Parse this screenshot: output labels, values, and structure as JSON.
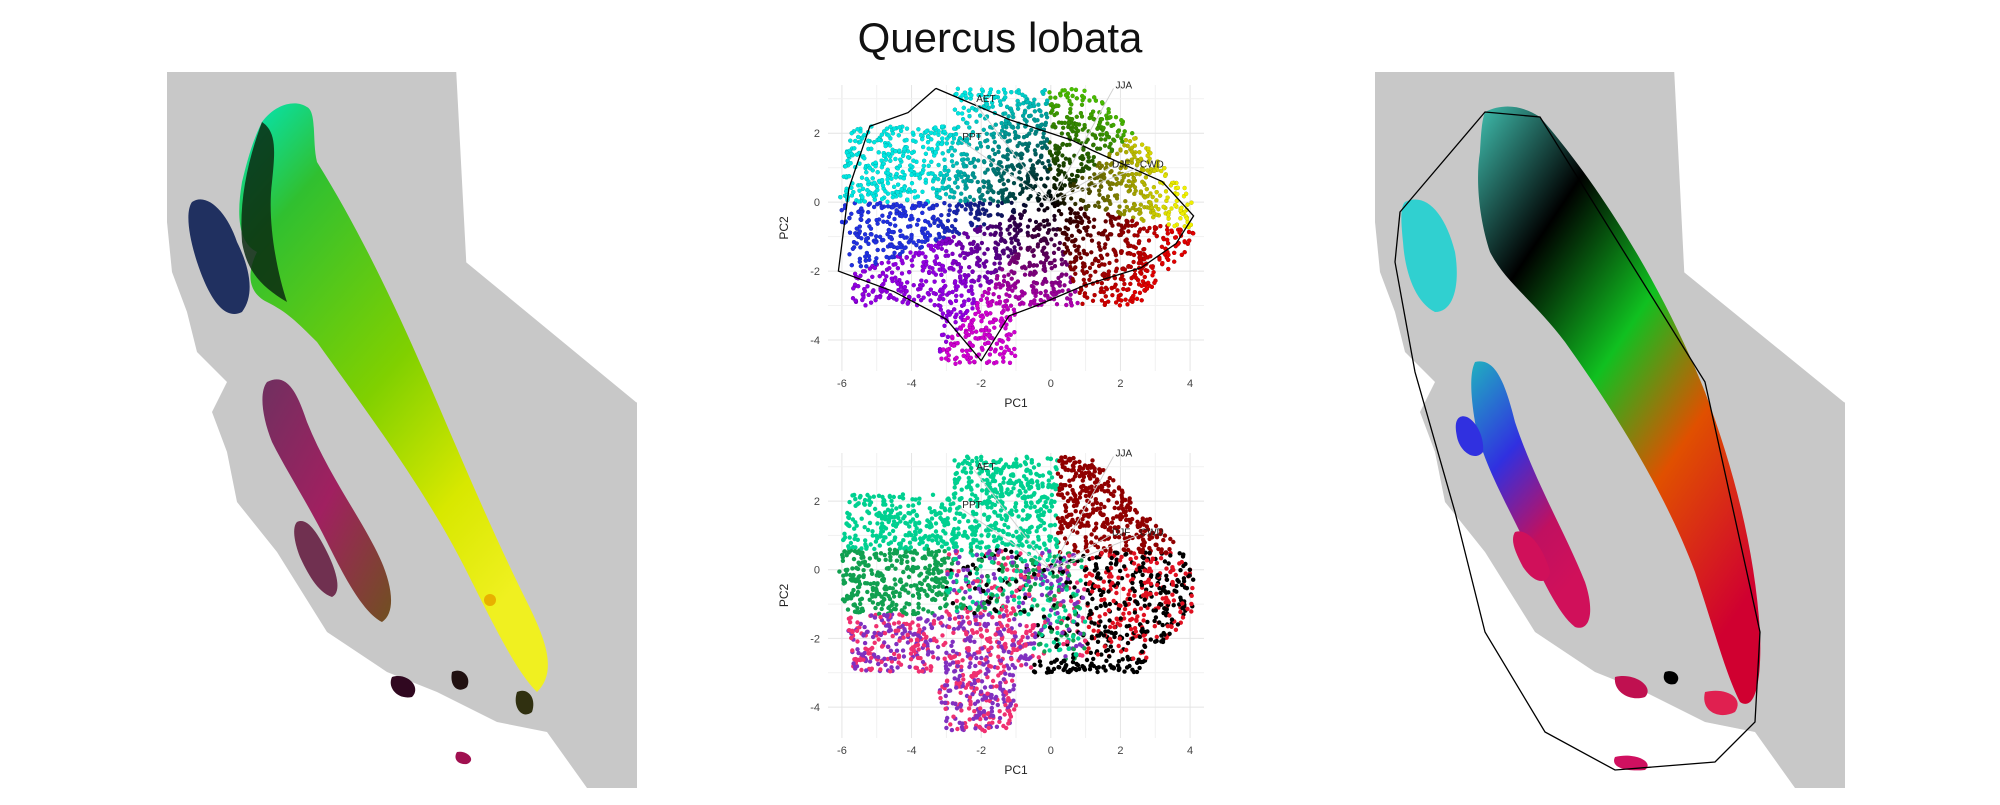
{
  "figure": {
    "title": "Quercus lobata"
  },
  "chart_data": [
    {
      "type": "scatter",
      "panel": "pca-colorwheel",
      "xlabel": "PC1",
      "ylabel": "PC2",
      "xlim": [
        -6.4,
        4.4
      ],
      "ylim": [
        -4.9,
        3.4
      ],
      "x_ticks": [
        "-6",
        "-4",
        "-2",
        "0",
        "2",
        "4"
      ],
      "y_ticks": [
        "2",
        "0",
        "-2",
        "-4"
      ],
      "grid": true,
      "hull_outline": true,
      "colors": {
        "black": "#000000",
        "cyan": "#00e5e0",
        "yellow": "#f0f000",
        "green": "#50d000",
        "red": "#e00000",
        "magenta": "#d000d0",
        "blue": "#2030e0",
        "purple": "#9000e0"
      },
      "loadings": [
        {
          "label": "AET",
          "x": -2.2,
          "y": 2.9
        },
        {
          "label": "JJA",
          "x": 1.8,
          "y": 3.3
        },
        {
          "label": "PPT",
          "x": -2.6,
          "y": 1.8
        },
        {
          "label": "DJF",
          "x": 1.7,
          "y": 1.0
        },
        {
          "label": "CWD",
          "x": 2.5,
          "y": 1.0
        }
      ]
    },
    {
      "type": "scatter",
      "panel": "pca-clusters",
      "xlabel": "PC1",
      "ylabel": "PC2",
      "xlim": [
        -6.4,
        4.4
      ],
      "ylim": [
        -4.9,
        3.4
      ],
      "x_ticks": [
        "-6",
        "-4",
        "-2",
        "0",
        "2",
        "4"
      ],
      "y_ticks": [
        "2",
        "0",
        "-2",
        "-4"
      ],
      "grid": true,
      "hull_outline": false,
      "colors": {
        "teal": "#00d090",
        "darkred": "#900000",
        "pink": "#f03070",
        "black": "#000000",
        "purple": "#8030c0",
        "green": "#10a050",
        "red": "#e01020"
      },
      "loadings": [
        {
          "label": "AET",
          "x": -2.2,
          "y": 2.9
        },
        {
          "label": "JJA",
          "x": 1.8,
          "y": 3.3
        },
        {
          "label": "PPT",
          "x": -2.6,
          "y": 1.8
        },
        {
          "label": "DJF",
          "x": 1.7,
          "y": 1.0
        },
        {
          "label": "CWD",
          "x": 2.5,
          "y": 1.0
        }
      ]
    }
  ],
  "maps": {
    "background_color": "#c8c8c8",
    "left_palette": [
      "#00e8c0",
      "#40d040",
      "#90e000",
      "#e8f000",
      "#2060c0",
      "#a02050",
      "#503020"
    ],
    "right_palette": [
      "#40e0e0",
      "#000000",
      "#20e020",
      "#e03000",
      "#d0105a",
      "#3030e0"
    ]
  }
}
